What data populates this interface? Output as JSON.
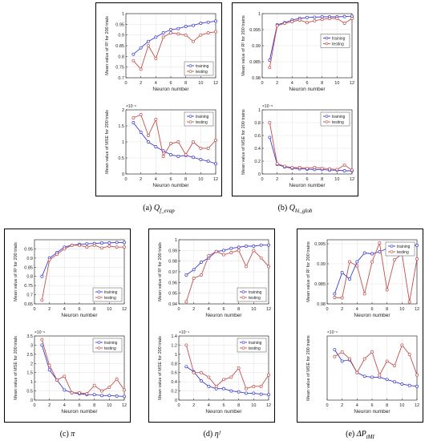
{
  "figure": {
    "captions": [
      {
        "prefix": "(a)",
        "main": "Q",
        "sub": "f_evap"
      },
      {
        "prefix": "(b)",
        "main": "Q",
        "sub": "hi_glob"
      },
      {
        "prefix": "(c)",
        "main": "π",
        "sub": ""
      },
      {
        "prefix": "(d)",
        "main": "ηᶠ",
        "sub": ""
      },
      {
        "prefix": "(e)",
        "main": "ΔP",
        "sub": "tMI"
      }
    ]
  },
  "colors": {
    "training": "#3a3ad6",
    "testing": "#c0504d"
  },
  "chart_data": [
    {
      "id": "a_r2",
      "type": "line",
      "xlabel": "Neuron number",
      "ylabel": "Mean value of R² for 200 trials",
      "xlim": [
        0,
        12
      ],
      "ylim": [
        0.7,
        1.0
      ],
      "xticks": [
        0,
        2,
        4,
        6,
        8,
        10,
        12
      ],
      "yticks": [
        0.7,
        0.75,
        0.8,
        0.85,
        0.9,
        0.95,
        1.0
      ],
      "ytick_labels": [
        "0.7",
        "0.75",
        "0.8",
        "0.85",
        "0.9",
        "0.95",
        "1"
      ],
      "exponent": "",
      "legend": "bottom-right",
      "x": [
        1,
        2,
        3,
        4,
        5,
        6,
        7,
        8,
        9,
        10,
        11,
        12
      ],
      "series": [
        {
          "name": "training",
          "values": [
            0.81,
            0.84,
            0.87,
            0.89,
            0.91,
            0.925,
            0.93,
            0.94,
            0.945,
            0.955,
            0.96,
            0.965
          ]
        },
        {
          "name": "testing",
          "values": [
            0.78,
            0.74,
            0.85,
            0.79,
            0.89,
            0.91,
            0.905,
            0.9,
            0.87,
            0.9,
            0.91,
            0.915
          ]
        }
      ]
    },
    {
      "id": "a_mse",
      "type": "line",
      "xlabel": "Neuron number",
      "ylabel": "Mean value of MSE for 200 trials",
      "xlim": [
        0,
        12
      ],
      "ylim": [
        0,
        2
      ],
      "xticks": [
        0,
        2,
        4,
        6,
        8,
        10,
        12
      ],
      "yticks": [
        0,
        0.5,
        1,
        1.5,
        2
      ],
      "ytick_labels": [
        "0",
        "0.5",
        "1",
        "1.5",
        "2"
      ],
      "exponent": "×10⁻⁶",
      "legend": "top-right",
      "x": [
        1,
        2,
        3,
        4,
        5,
        6,
        7,
        8,
        9,
        10,
        11,
        12
      ],
      "series": [
        {
          "name": "training",
          "values": [
            1.6,
            1.3,
            1.0,
            0.85,
            0.72,
            0.6,
            0.55,
            0.58,
            0.52,
            0.45,
            0.4,
            0.32
          ]
        },
        {
          "name": "testing",
          "values": [
            1.75,
            1.85,
            1.2,
            1.7,
            0.55,
            0.95,
            1.0,
            0.6,
            1.0,
            0.8,
            0.8,
            1.05
          ]
        }
      ]
    },
    {
      "id": "b_r2",
      "type": "line",
      "xlabel": "Neuron number",
      "ylabel": "Mean value of R² for 200 trains",
      "xlim": [
        0,
        12
      ],
      "ylim": [
        0.98,
        1.0
      ],
      "xticks": [
        0,
        2,
        4,
        6,
        8,
        10,
        12
      ],
      "yticks": [
        0.98,
        0.985,
        0.99,
        0.995,
        1.0
      ],
      "ytick_labels": [
        "0.98",
        "0.985",
        "0.99",
        "0.995",
        "1"
      ],
      "exponent": "",
      "legend": "middle-right",
      "x": [
        1,
        2,
        3,
        4,
        5,
        6,
        7,
        8,
        9,
        10,
        11,
        12
      ],
      "series": [
        {
          "name": "training",
          "values": [
            0.9855,
            0.9965,
            0.9972,
            0.998,
            0.9985,
            0.9988,
            0.9989,
            0.999,
            0.999,
            0.999,
            0.9991,
            0.9992
          ]
        },
        {
          "name": "testing",
          "values": [
            0.9832,
            0.9962,
            0.997,
            0.9975,
            0.998,
            0.9972,
            0.9978,
            0.9982,
            0.9985,
            0.9985,
            0.997,
            0.9985
          ]
        }
      ]
    },
    {
      "id": "b_mse",
      "type": "line",
      "xlabel": "Neuron number",
      "ylabel": "Mean value of MSE for 200 trains",
      "xlim": [
        0,
        12
      ],
      "ylim": [
        0,
        1
      ],
      "xticks": [
        0,
        2,
        4,
        6,
        8,
        10,
        12
      ],
      "yticks": [
        0,
        0.2,
        0.4,
        0.6,
        0.8,
        1.0
      ],
      "ytick_labels": [
        "0",
        "0.2",
        "0.4",
        "0.6",
        "0.8",
        "1"
      ],
      "exponent": "×10⁻⁸",
      "legend": "top-right",
      "x": [
        1,
        2,
        3,
        4,
        5,
        6,
        7,
        8,
        9,
        10,
        11,
        12
      ],
      "series": [
        {
          "name": "training",
          "values": [
            0.57,
            0.15,
            0.11,
            0.09,
            0.08,
            0.075,
            0.07,
            0.07,
            0.06,
            0.06,
            0.05,
            0.05
          ]
        },
        {
          "name": "testing",
          "values": [
            0.8,
            0.16,
            0.12,
            0.1,
            0.1,
            0.09,
            0.1,
            0.09,
            0.08,
            0.07,
            0.14,
            0.06
          ]
        }
      ]
    },
    {
      "id": "c_r2",
      "type": "line",
      "xlabel": "Neuron number",
      "ylabel": "Mean value of R² for 200 trials",
      "xlim": [
        0,
        12
      ],
      "ylim": [
        0.65,
        1.0
      ],
      "xticks": [
        0,
        2,
        4,
        6,
        8,
        10,
        12
      ],
      "yticks": [
        0.65,
        0.7,
        0.75,
        0.8,
        0.85,
        0.9,
        0.95
      ],
      "ytick_labels": [
        "0.65",
        "0.7",
        "0.75",
        "0.8",
        "0.85",
        "0.9",
        "0.95"
      ],
      "exponent": "",
      "legend": "bottom-right",
      "x": [
        1,
        2,
        3,
        4,
        5,
        6,
        7,
        8,
        9,
        10,
        11,
        12
      ],
      "series": [
        {
          "name": "training",
          "values": [
            0.8,
            0.9,
            0.93,
            0.96,
            0.97,
            0.975,
            0.978,
            0.98,
            0.982,
            0.983,
            0.985,
            0.985
          ]
        },
        {
          "name": "testing",
          "values": [
            0.67,
            0.89,
            0.92,
            0.95,
            0.97,
            0.97,
            0.96,
            0.97,
            0.955,
            0.965,
            0.96,
            0.96
          ]
        }
      ]
    },
    {
      "id": "c_mse",
      "type": "line",
      "xlabel": "Neuron number",
      "ylabel": "Mean value of MSE for 200 trials",
      "xlim": [
        0,
        12
      ],
      "ylim": [
        0,
        3.5
      ],
      "xticks": [
        0,
        2,
        4,
        6,
        8,
        10,
        12
      ],
      "yticks": [
        0,
        0.5,
        1,
        1.5,
        2,
        2.5,
        3,
        3.5
      ],
      "ytick_labels": [
        "0",
        "0.5",
        "1",
        "1.5",
        "2",
        "2.5",
        "3",
        "3.5"
      ],
      "exponent": "×10⁻⁶",
      "legend": "top-right",
      "x": [
        1,
        2,
        3,
        4,
        5,
        6,
        7,
        8,
        9,
        10,
        11,
        12
      ],
      "series": [
        {
          "name": "training",
          "values": [
            3.0,
            1.65,
            1.1,
            0.55,
            0.4,
            0.35,
            0.3,
            0.3,
            0.25,
            0.25,
            0.22,
            0.2
          ]
        },
        {
          "name": "testing",
          "values": [
            3.3,
            1.9,
            1.1,
            1.3,
            0.4,
            0.4,
            0.35,
            0.8,
            0.5,
            0.7,
            1.15,
            0.55
          ]
        }
      ]
    },
    {
      "id": "d_r2",
      "type": "line",
      "xlabel": "Neuron number",
      "ylabel": "Mean value of R² for 200 trials",
      "xlim": [
        0,
        12
      ],
      "ylim": [
        0.94,
        1.0
      ],
      "xticks": [
        0,
        2,
        4,
        6,
        8,
        10,
        12
      ],
      "yticks": [
        0.94,
        0.95,
        0.96,
        0.97,
        0.98,
        0.99,
        1.0
      ],
      "ytick_labels": [
        "0.94",
        "0.95",
        "0.96",
        "0.97",
        "0.98",
        "0.99",
        "1"
      ],
      "exponent": "",
      "legend": "bottom-right",
      "x": [
        1,
        2,
        3,
        4,
        5,
        6,
        7,
        8,
        9,
        10,
        11,
        12
      ],
      "series": [
        {
          "name": "training",
          "values": [
            0.967,
            0.972,
            0.979,
            0.983,
            0.989,
            0.99,
            0.992,
            0.993,
            0.994,
            0.994,
            0.995,
            0.995
          ]
        },
        {
          "name": "testing",
          "values": [
            0.942,
            0.964,
            0.967,
            0.985,
            0.989,
            0.986,
            0.988,
            0.99,
            0.975,
            0.99,
            0.983,
            0.975
          ]
        }
      ]
    },
    {
      "id": "d_mse",
      "type": "line",
      "xlabel": "Neuron number",
      "ylabel": "Mean value of MSE for 200 trials",
      "xlim": [
        0,
        12
      ],
      "ylim": [
        0,
        1.4
      ],
      "xticks": [
        0,
        2,
        4,
        6,
        8,
        10,
        12
      ],
      "yticks": [
        0,
        0.2,
        0.4,
        0.6,
        0.8,
        1.0,
        1.2,
        1.4
      ],
      "ytick_labels": [
        "0",
        "0.2",
        "0.4",
        "0.6",
        "0.8",
        "1",
        "1.2",
        "1.4"
      ],
      "exponent": "×10⁻⁴",
      "legend": "top-right",
      "x": [
        1,
        2,
        3,
        4,
        5,
        6,
        7,
        8,
        9,
        10,
        11,
        12
      ],
      "series": [
        {
          "name": "training",
          "values": [
            0.73,
            0.62,
            0.42,
            0.3,
            0.25,
            0.25,
            0.2,
            0.18,
            0.15,
            0.15,
            0.13,
            0.12
          ]
        },
        {
          "name": "testing",
          "values": [
            1.2,
            0.6,
            0.6,
            0.5,
            0.3,
            0.45,
            0.5,
            0.7,
            0.25,
            0.3,
            0.3,
            0.55
          ]
        }
      ]
    },
    {
      "id": "e_r2",
      "type": "line",
      "xlabel": "Neuron number",
      "ylabel": "Mean value of R² for 200 trains",
      "xlim": [
        0,
        12
      ],
      "ylim": [
        0.98,
        0.996
      ],
      "xticks": [
        0,
        2,
        4,
        6,
        8,
        10,
        12
      ],
      "yticks": [
        0.98,
        0.985,
        0.99,
        0.995
      ],
      "ytick_labels": [
        "0.98",
        "0.985",
        "0.99",
        "0.995"
      ],
      "exponent": "",
      "legend": "top-right",
      "x": [
        1,
        2,
        3,
        4,
        5,
        6,
        7,
        8,
        9,
        10,
        11,
        12
      ],
      "series": [
        {
          "name": "training",
          "values": [
            0.9825,
            0.9878,
            0.9862,
            0.9905,
            0.9927,
            0.9925,
            0.993,
            0.9938,
            0.9948,
            0.9942,
            0.9945,
            0.9946
          ]
        },
        {
          "name": "testing",
          "values": [
            0.9816,
            0.9815,
            0.9905,
            0.9895,
            0.9825,
            0.9905,
            0.9952,
            0.9835,
            0.991,
            0.9925,
            0.9805,
            0.9912
          ]
        }
      ]
    },
    {
      "id": "e_mse",
      "type": "line",
      "xlabel": "Neuron number",
      "ylabel": "Mean value of MSE for 200 trains",
      "xlim": [
        0,
        12
      ],
      "ylim": [
        0,
        1.4
      ],
      "xticks": [
        0,
        2,
        4,
        6,
        8,
        10,
        12
      ],
      "yticks": [],
      "ytick_labels": [],
      "exponent": "×10⁻⁶",
      "legend": "none",
      "x": [
        1,
        2,
        3,
        4,
        5,
        6,
        7,
        8,
        9,
        10,
        11,
        12
      ],
      "series": [
        {
          "name": "training",
          "values": [
            1.1,
            0.85,
            0.88,
            0.6,
            0.52,
            0.5,
            0.5,
            0.45,
            0.4,
            0.35,
            0.32,
            0.3
          ]
        },
        {
          "name": "testing",
          "values": [
            0.95,
            1.05,
            0.9,
            0.6,
            0.9,
            1.05,
            0.55,
            0.85,
            0.75,
            1.2,
            1.0,
            0.55
          ]
        }
      ]
    }
  ]
}
